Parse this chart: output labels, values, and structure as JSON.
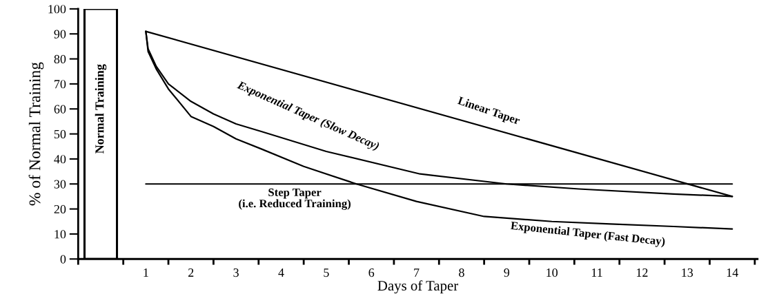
{
  "chart_data": {
    "type": "line",
    "xlabel": "Days of Taper",
    "ylabel": "% of Normal Training",
    "xlim": [
      -0.5,
      14.56
    ],
    "ylim": [
      0,
      100
    ],
    "xticks": [
      {
        "value": -0.5,
        "label": null
      },
      {
        "value": 0.5,
        "label": null
      },
      1,
      {
        "value": 1.5,
        "label": null
      },
      2,
      {
        "value": 2.5,
        "label": null
      },
      3,
      {
        "value": 3.5,
        "label": null
      },
      4,
      {
        "value": 4.5,
        "label": null
      },
      5,
      {
        "value": 5.5,
        "label": null
      },
      6,
      {
        "value": 6.5,
        "label": null
      },
      7,
      {
        "value": 7.5,
        "label": null
      },
      8,
      {
        "value": 8.5,
        "label": null
      },
      9,
      {
        "value": 9.5,
        "label": null
      },
      10,
      {
        "value": 10.5,
        "label": null
      },
      11,
      {
        "value": 11.5,
        "label": null
      },
      12,
      {
        "value": 12.5,
        "label": null
      },
      13,
      {
        "value": 13.5,
        "label": null
      },
      14,
      {
        "value": 14.5,
        "label": null
      }
    ],
    "yticks": [
      0,
      10,
      20,
      30,
      40,
      50,
      60,
      70,
      80,
      90,
      100
    ],
    "annotations": [
      "Normal Training"
    ],
    "grid": false,
    "legend": false,
    "marker": "none",
    "line_style": "solid",
    "series": [
      {
        "type": "bar",
        "color": "#ffffff",
        "x": [
          0
        ],
        "values": [
          100
        ]
      },
      {
        "name": "Linear Taper",
        "color": "#000000",
        "x": [
          1,
          14
        ],
        "values": [
          91,
          25
        ]
      },
      {
        "name": "Exponential Taper (Slow Decay)",
        "color": "#000000",
        "x": [
          1,
          1.05,
          1.23,
          1.5,
          2,
          2.5,
          3,
          3.56,
          5,
          7.08,
          9,
          10.6,
          12.7,
          14
        ],
        "values": [
          91,
          84,
          77,
          70,
          63,
          58,
          54,
          51,
          43,
          34,
          30,
          28,
          26,
          25
        ]
      },
      {
        "name": "Exponential Taper (Fast Decay)",
        "color": "#000000",
        "x": [
          1,
          1.05,
          1.23,
          1.5,
          2,
          2.5,
          3,
          3.56,
          4.5,
          5.67,
          7,
          8.5,
          10,
          11.3,
          12.7,
          14
        ],
        "values": [
          91,
          83,
          76,
          68,
          57,
          53,
          48,
          44,
          37,
          30,
          23,
          17,
          15,
          14,
          13,
          12
        ]
      },
      {
        "name": "Step Taper\n(i.e. Reduced Training)",
        "color": "#000000",
        "x": [
          1,
          14
        ],
        "values": [
          30,
          30
        ]
      }
    ]
  }
}
